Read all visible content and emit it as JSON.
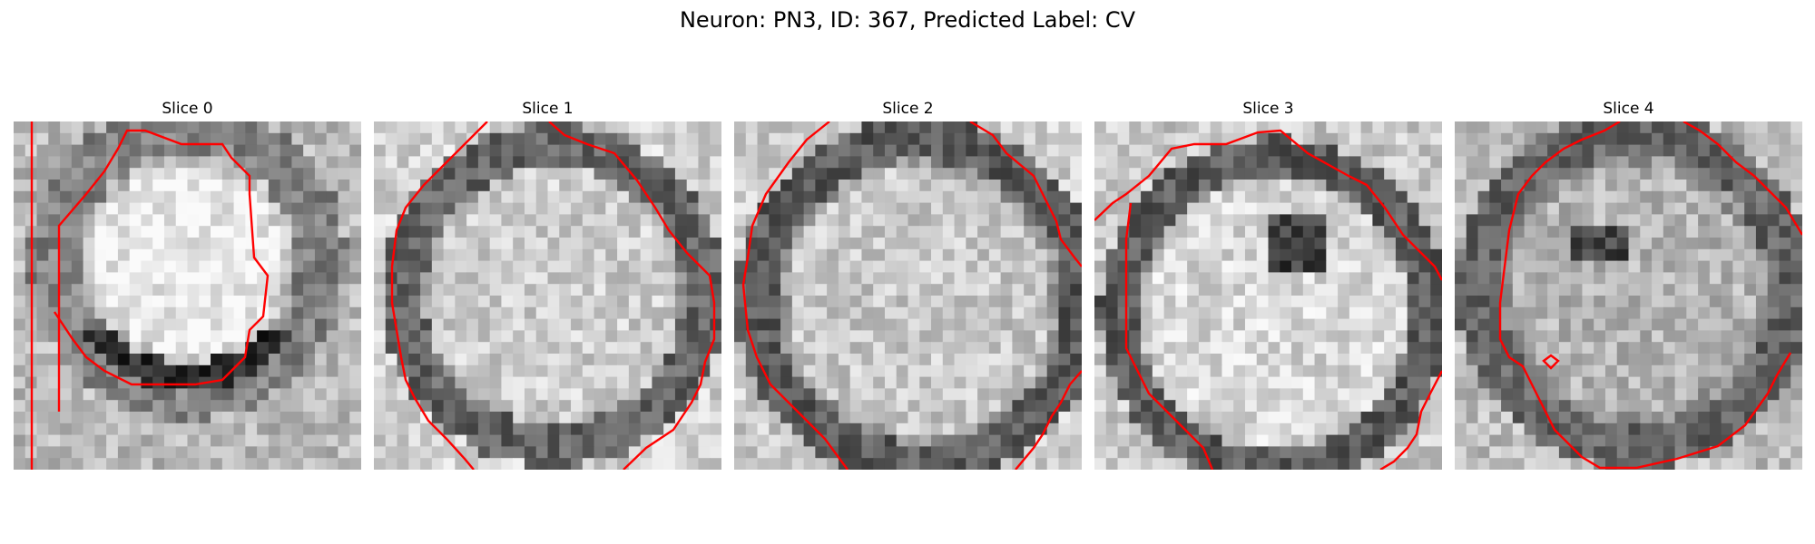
{
  "figure": {
    "title": "Neuron: PN3, ID: 367, Predicted Label: CV",
    "contour_color": "#ff0000"
  },
  "slices": [
    {
      "title": "Slice 0"
    },
    {
      "title": "Slice 1"
    },
    {
      "title": "Slice 2"
    },
    {
      "title": "Slice 3"
    },
    {
      "title": "Slice 4"
    }
  ]
}
